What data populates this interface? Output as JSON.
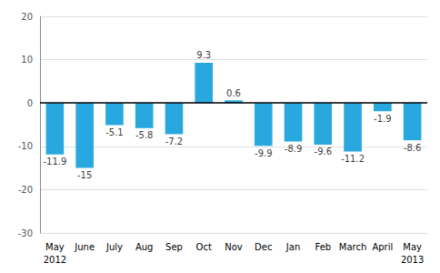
{
  "chart_data": {
    "type": "bar",
    "categories": [
      "May",
      "June",
      "July",
      "Aug",
      "Sep",
      "Oct",
      "Nov",
      "Dec",
      "Jan",
      "Feb",
      "March",
      "April",
      "May"
    ],
    "values": [
      -11.9,
      -15.0,
      -5.1,
      -5.8,
      -7.2,
      9.3,
      0.6,
      -9.9,
      -8.9,
      -9.6,
      -11.2,
      -1.9,
      -8.6
    ],
    "color": "#29a8e0",
    "ylim": [
      -30,
      20
    ],
    "yticks": [
      -30,
      -20,
      -10,
      0,
      10,
      20
    ],
    "grid": true,
    "data_labels": true,
    "annotations": [
      {
        "text": "2012",
        "index": 0
      },
      {
        "text": "2013",
        "index": 12
      }
    ]
  }
}
